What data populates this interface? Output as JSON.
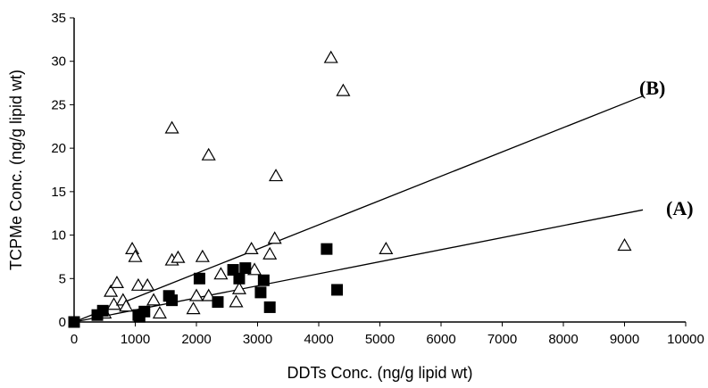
{
  "chart_data": {
    "type": "scatter",
    "title": "",
    "xlabel": "DDTs Conc. (ng/g lipid wt)",
    "ylabel": "TCPMe Conc. (ng/g lipid wt)",
    "xlim": [
      0,
      10000
    ],
    "ylim": [
      0,
      35
    ],
    "x_ticks": [
      "0",
      "1000",
      "2000",
      "3000",
      "4000",
      "5000",
      "6000",
      "7000",
      "8000",
      "9000",
      "10000"
    ],
    "y_ticks": [
      "0",
      "5",
      "10",
      "15",
      "20",
      "25",
      "30",
      "35"
    ],
    "grid": false,
    "legend": "none",
    "series": [
      {
        "name": "(A)",
        "marker": "filled-square",
        "points": [
          [
            0,
            0
          ],
          [
            380,
            0.8
          ],
          [
            470,
            1.3
          ],
          [
            1050,
            0.8
          ],
          [
            1150,
            1.2
          ],
          [
            1070,
            0.6
          ],
          [
            1550,
            3.0
          ],
          [
            1600,
            2.5
          ],
          [
            2050,
            5.0
          ],
          [
            2350,
            2.3
          ],
          [
            2600,
            6.0
          ],
          [
            2700,
            5.0
          ],
          [
            2800,
            6.2
          ],
          [
            3050,
            3.4
          ],
          [
            3100,
            4.8
          ],
          [
            3200,
            1.7
          ],
          [
            4130,
            8.4
          ],
          [
            4300,
            3.7
          ]
        ],
        "trendline": [
          [
            0,
            0
          ],
          [
            9300,
            12.9
          ]
        ]
      },
      {
        "name": "(B)",
        "marker": "open-triangle",
        "points": [
          [
            500,
            1.0
          ],
          [
            600,
            3.5
          ],
          [
            650,
            2.0
          ],
          [
            700,
            4.5
          ],
          [
            800,
            2.5
          ],
          [
            850,
            1.8
          ],
          [
            950,
            8.4
          ],
          [
            1000,
            7.5
          ],
          [
            1050,
            4.2
          ],
          [
            1200,
            4.2
          ],
          [
            1300,
            2.5
          ],
          [
            1400,
            1.0
          ],
          [
            1600,
            7.1
          ],
          [
            1600,
            22.3
          ],
          [
            1700,
            7.4
          ],
          [
            1950,
            1.5
          ],
          [
            2000,
            3.0
          ],
          [
            2100,
            7.5
          ],
          [
            2200,
            19.2
          ],
          [
            2200,
            3.0
          ],
          [
            2400,
            5.5
          ],
          [
            2650,
            2.3
          ],
          [
            2700,
            3.8
          ],
          [
            2900,
            8.4
          ],
          [
            2950,
            6.0
          ],
          [
            3200,
            7.8
          ],
          [
            3280,
            9.6
          ],
          [
            3300,
            16.8
          ],
          [
            4200,
            30.4
          ],
          [
            4400,
            26.6
          ],
          [
            5100,
            8.4
          ],
          [
            9000,
            8.8
          ]
        ],
        "trendline": [
          [
            0,
            0
          ],
          [
            9300,
            26.0
          ]
        ]
      }
    ],
    "annotations": [
      {
        "text": "(B)",
        "at": [
          9300,
          26.0
        ]
      },
      {
        "text": "(A)",
        "at": [
          9300,
          12.9
        ]
      }
    ]
  }
}
